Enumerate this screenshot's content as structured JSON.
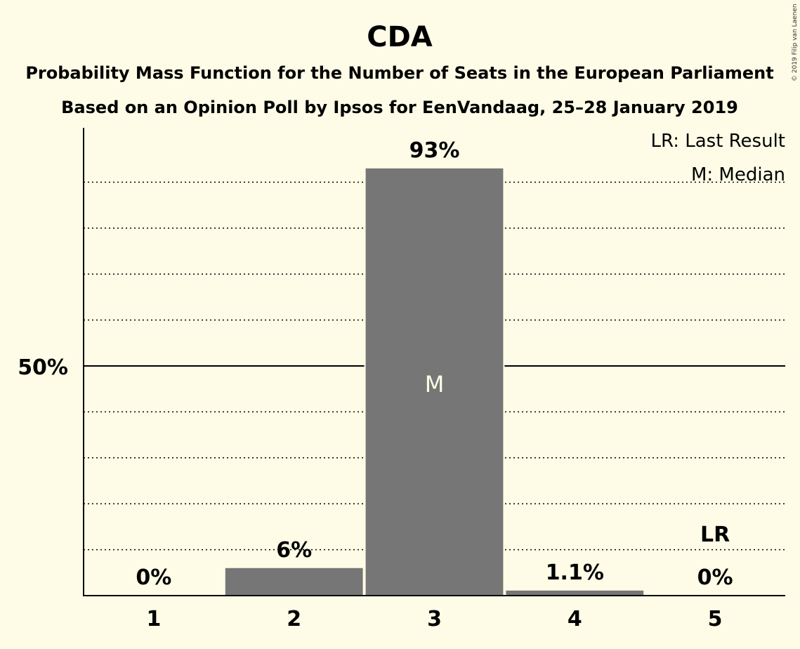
{
  "chart_data": {
    "type": "bar",
    "title": "CDA",
    "subtitle": "Probability Mass Function for the Number of Seats in the European Parliament",
    "subtitle2": "Based on an Opinion Poll by Ipsos for EenVandaag, 25–28 January 2019",
    "categories": [
      "1",
      "2",
      "3",
      "4",
      "5"
    ],
    "values": [
      0,
      6,
      93,
      1.1,
      0
    ],
    "value_labels": [
      "0%",
      "6%",
      "93%",
      "1.1%",
      "0%"
    ],
    "ylim": [
      0,
      100
    ],
    "ytick_label": "50%",
    "median_marker": "M",
    "last_result_marker": "LR",
    "legend": [
      "LR: Last Result",
      "M: Median"
    ],
    "legend_position": "top-right",
    "copyright": "© 2019 Filip van Laenen",
    "bar_color": "#767676",
    "background": "#fefce6"
  }
}
